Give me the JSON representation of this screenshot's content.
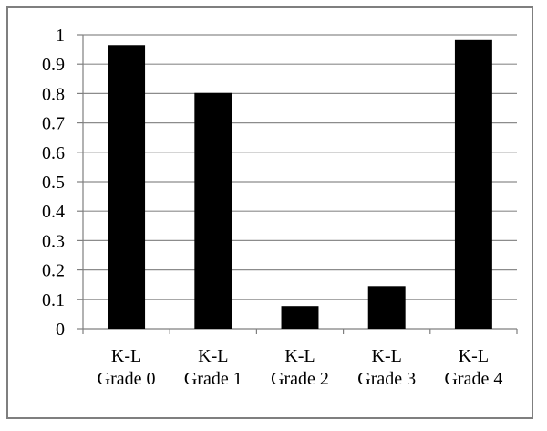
{
  "chart_data": {
    "type": "bar",
    "title": "",
    "xlabel": "",
    "ylabel": "",
    "categories": [
      [
        "K-L",
        "Grade 0"
      ],
      [
        "K-L",
        "Grade 1"
      ],
      [
        "K-L",
        "Grade 2"
      ],
      [
        "K-L",
        "Grade 3"
      ],
      [
        "K-L",
        "Grade 4"
      ]
    ],
    "values": [
      0.965,
      0.802,
      0.077,
      0.145,
      0.982
    ],
    "ylim": [
      0,
      1
    ],
    "yticks": [
      "0",
      "0.1",
      "0.2",
      "0.3",
      "0.4",
      "0.5",
      "0.6",
      "0.7",
      "0.8",
      "0.9",
      "1"
    ],
    "grid": "horizontal",
    "bar_color": "#000000",
    "grid_color": "#8c8c8c",
    "axis_color": "#7f7f7f"
  }
}
